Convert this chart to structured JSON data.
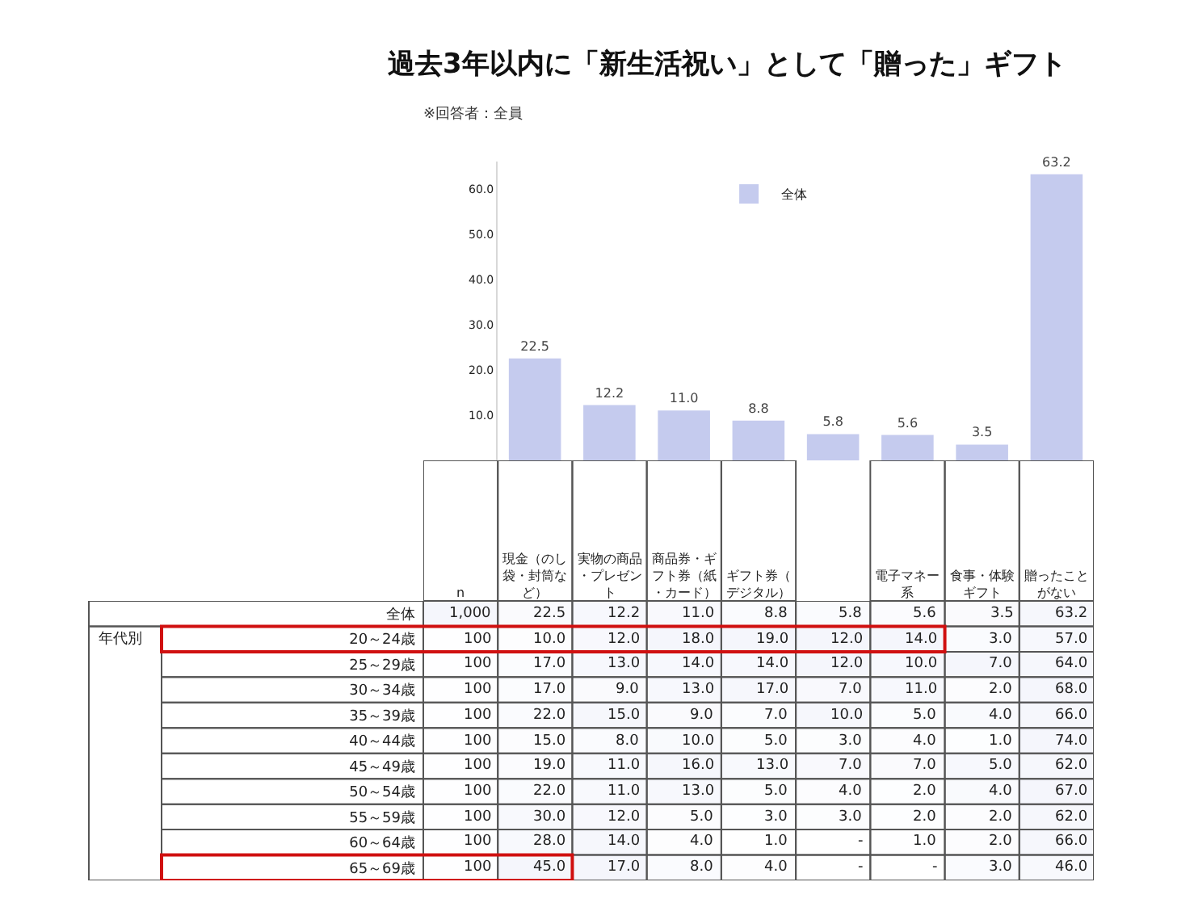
{
  "chart_data": [
    {
      "type": "bar",
      "title": "過去3年以内に「新生活祝い」として「贈った」ギフト",
      "subtitle": "※回答者：全員",
      "categories": [
        null,
        null,
        null,
        null,
        null,
        null,
        null,
        null
      ],
      "series": [
        {
          "name": "全体",
          "color": "#c5cbee",
          "values": [
            22.5,
            12.2,
            11.0,
            8.8,
            5.8,
            5.6,
            3.5,
            63.2
          ],
          "value_labels": [
            "22.5",
            "12.2",
            "11.0",
            "8.8",
            "5.8",
            "5.6",
            "3.5",
            "63.2"
          ]
        }
      ],
      "ylim": [
        0,
        66
      ],
      "tick_labels": "y",
      "yticks": [
        {
          "value": 10,
          "label": "10.0"
        },
        {
          "value": 20,
          "label": "20.0"
        },
        {
          "value": 30,
          "label": "30.0"
        },
        {
          "value": 40,
          "label": "40.0"
        },
        {
          "value": 50,
          "label": "50.0"
        },
        {
          "value": 60,
          "label": "60.0"
        }
      ],
      "legend": "top"
    },
    {
      "type": "heatmap",
      "categories": [
        "n",
        "現金（のし袋・封筒など）",
        "実物の商品・プレゼント",
        "商品券・ギフト券（紙・カード）",
        "ギフト券（デジタル）",
        null,
        "電子マネー系",
        "食事・体験ギフト",
        "贈ったことがない"
      ],
      "y_categories": [
        "全体",
        "20～24歳",
        "25～29歳",
        "30～34歳",
        "35～39歳",
        "40～44歳",
        "45～49歳",
        "50～54歳",
        "55～59歳",
        "60～64歳",
        "65～69歳"
      ],
      "cells": [
        [
          1000,
          22.5,
          12.2,
          11.0,
          8.8,
          5.8,
          5.6,
          3.5,
          63.2
        ],
        [
          100,
          10.0,
          12.0,
          18.0,
          19.0,
          12.0,
          14.0,
          3.0,
          57.0
        ],
        [
          100,
          17.0,
          13.0,
          14.0,
          14.0,
          12.0,
          10.0,
          7.0,
          64.0
        ],
        [
          100,
          17.0,
          9.0,
          13.0,
          17.0,
          7.0,
          11.0,
          2.0,
          68.0
        ],
        [
          100,
          22.0,
          15.0,
          9.0,
          7.0,
          10.0,
          5.0,
          4.0,
          66.0
        ],
        [
          100,
          15.0,
          8.0,
          10.0,
          5.0,
          3.0,
          4.0,
          1.0,
          74.0
        ],
        [
          100,
          19.0,
          11.0,
          16.0,
          13.0,
          7.0,
          7.0,
          5.0,
          62.0
        ],
        [
          100,
          22.0,
          11.0,
          13.0,
          5.0,
          4.0,
          2.0,
          4.0,
          67.0
        ],
        [
          100,
          30.0,
          12.0,
          5.0,
          3.0,
          3.0,
          2.0,
          2.0,
          62.0
        ],
        [
          100,
          28.0,
          14.0,
          4.0,
          1.0,
          null,
          1.0,
          2.0,
          66.0
        ],
        [
          100,
          45.0,
          17.0,
          8.0,
          4.0,
          null,
          null,
          3.0,
          46.0
        ]
      ],
      "cell_labels": [
        [
          "1,000",
          "22.5",
          "12.2",
          "11.0",
          "8.8",
          "5.8",
          "5.6",
          "3.5",
          "63.2"
        ],
        [
          "100",
          "10.0",
          "12.0",
          "18.0",
          "19.0",
          "12.0",
          "14.0",
          "3.0",
          "57.0"
        ],
        [
          "100",
          "17.0",
          "13.0",
          "14.0",
          "14.0",
          "12.0",
          "10.0",
          "7.0",
          "64.0"
        ],
        [
          "100",
          "17.0",
          "9.0",
          "13.0",
          "17.0",
          "7.0",
          "11.0",
          "2.0",
          "68.0"
        ],
        [
          "100",
          "22.0",
          "15.0",
          "9.0",
          "7.0",
          "10.0",
          "5.0",
          "4.0",
          "66.0"
        ],
        [
          "100",
          "15.0",
          "8.0",
          "10.0",
          "5.0",
          "3.0",
          "4.0",
          "1.0",
          "74.0"
        ],
        [
          "100",
          "19.0",
          "11.0",
          "16.0",
          "13.0",
          "7.0",
          "7.0",
          "5.0",
          "62.0"
        ],
        [
          "100",
          "22.0",
          "11.0",
          "13.0",
          "5.0",
          "4.0",
          "2.0",
          "4.0",
          "67.0"
        ],
        [
          "100",
          "30.0",
          "12.0",
          "5.0",
          "3.0",
          "3.0",
          "2.0",
          "2.0",
          "62.0"
        ],
        [
          "100",
          "28.0",
          "14.0",
          "4.0",
          "1.0",
          "-",
          "1.0",
          "2.0",
          "66.0"
        ],
        [
          "100",
          "45.0",
          "17.0",
          "8.0",
          "4.0",
          "-",
          "-",
          "3.0",
          "46.0"
        ]
      ],
      "annotations": [
        "年代別"
      ]
    }
  ]
}
